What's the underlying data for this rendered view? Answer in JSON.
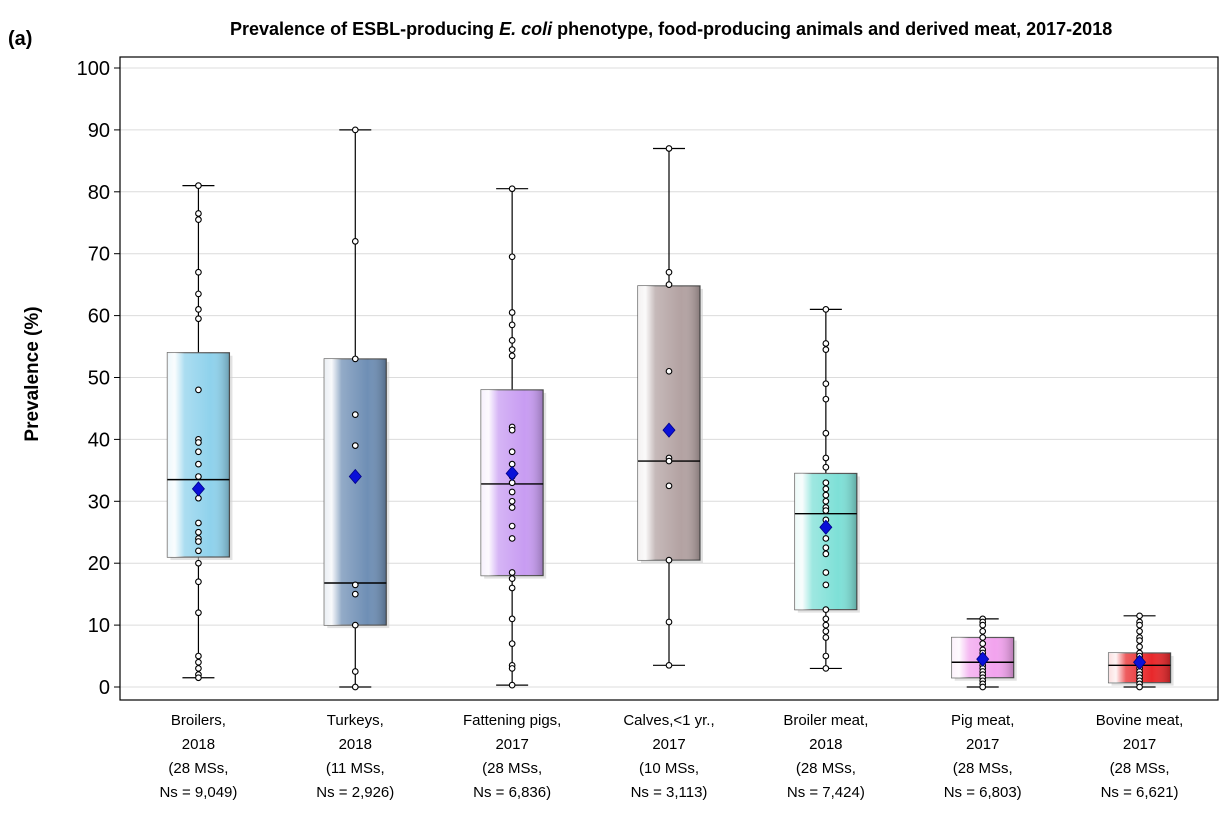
{
  "panel_label": "(a)",
  "title": {
    "prefix": "Prevalence of ESBL-producing ",
    "italic": "E. coli",
    "suffix": " phenotype, food-producing animals and derived meat, 2017-2018"
  },
  "chart_data": {
    "type": "box",
    "title": "Prevalence of ESBL-producing E. coli phenotype, food-producing animals and derived meat, 2017-2018",
    "ylabel": "Prevalence (%)",
    "xlabel": "",
    "ylim": [
      0,
      100
    ],
    "yticks": [
      0,
      10,
      20,
      30,
      40,
      50,
      60,
      70,
      80,
      90,
      100
    ],
    "grid": true,
    "legend": "none",
    "categories": [
      {
        "label_lines": [
          "Broilers,",
          "2018",
          "(28 MSs,",
          "Ns = 9,049)"
        ],
        "color": "#8fd2ec",
        "min": 1.5,
        "q1": 21,
        "median": 33.5,
        "q3": 54,
        "max": 81,
        "mean": 32,
        "points": [
          81,
          76.5,
          75.5,
          67,
          63.5,
          61,
          59.5,
          48,
          40,
          39.5,
          38,
          36,
          34,
          30.5,
          26.5,
          25,
          24,
          23.5,
          22,
          20,
          17,
          12,
          5,
          4,
          3,
          2,
          1.5
        ]
      },
      {
        "label_lines": [
          "Turkeys,",
          "2018",
          "(11 MSs,",
          "Ns = 2,926)"
        ],
        "color": "#6f8fb5",
        "min": 0,
        "q1": 10,
        "median": 16.8,
        "q3": 53,
        "max": 90,
        "mean": 34,
        "points": [
          90,
          72,
          53,
          44,
          39,
          16.5,
          15,
          10,
          2.5,
          0
        ]
      },
      {
        "label_lines": [
          "Fattening pigs,",
          "2017",
          "(28 MSs,",
          "Ns = 6,836)"
        ],
        "color": "#c89cf2",
        "min": 0.3,
        "q1": 18,
        "median": 32.8,
        "q3": 48,
        "max": 80.5,
        "mean": 34.5,
        "points": [
          80.5,
          69.5,
          60.5,
          58.5,
          56,
          54.5,
          53.5,
          42,
          41.5,
          38,
          36,
          34,
          33,
          31.5,
          30,
          29,
          26,
          24,
          18.5,
          17.5,
          16,
          11,
          7,
          3.5,
          3,
          0.3
        ]
      },
      {
        "label_lines": [
          "Calves,<1 yr.,",
          "2017",
          "(10 MSs,",
          "Ns = 3,113)"
        ],
        "color": "#b3a2a2",
        "min": 3.5,
        "q1": 20.5,
        "median": 36.5,
        "q3": 64.8,
        "max": 87,
        "mean": 41.5,
        "points": [
          87,
          67,
          65,
          51,
          37,
          36.5,
          32.5,
          20.5,
          10.5,
          3.5
        ]
      },
      {
        "label_lines": [
          "Broiler meat,",
          "2018",
          "(28 MSs,",
          "Ns = 7,424)"
        ],
        "color": "#7ee0d7",
        "min": 3,
        "q1": 12.5,
        "median": 28,
        "q3": 34.5,
        "max": 61,
        "mean": 25.8,
        "points": [
          61,
          55.5,
          54.5,
          49,
          46.5,
          41,
          37,
          35.5,
          33,
          32,
          31,
          30,
          29,
          28.5,
          27,
          26,
          24,
          22.5,
          21.5,
          18.5,
          16.5,
          12.5,
          11,
          10,
          9,
          8,
          5,
          3
        ]
      },
      {
        "label_lines": [
          "Pig meat,",
          "2017",
          "(28 MSs,",
          "Ns = 6,803)"
        ],
        "color": "#f2a3ee",
        "min": 0,
        "q1": 1.5,
        "median": 4,
        "q3": 8,
        "max": 11,
        "mean": 4.5,
        "points": [
          11,
          10.5,
          10,
          9,
          8,
          7,
          6,
          5.5,
          5,
          4.5,
          4,
          3.5,
          3,
          2.5,
          2,
          1.5,
          1,
          0.5,
          0
        ]
      },
      {
        "label_lines": [
          "Bovine meat,",
          "2017",
          "(28 MSs,",
          "Ns = 6,621)"
        ],
        "color": "#e8282b",
        "min": 0,
        "q1": 0.7,
        "median": 3.5,
        "q3": 5.5,
        "max": 11.5,
        "mean": 4,
        "points": [
          11.5,
          10.5,
          10,
          9,
          8,
          7.5,
          6.5,
          5.5,
          5,
          4.5,
          4,
          3.5,
          3,
          2.5,
          2,
          1.5,
          1,
          0.5,
          0
        ]
      }
    ]
  }
}
